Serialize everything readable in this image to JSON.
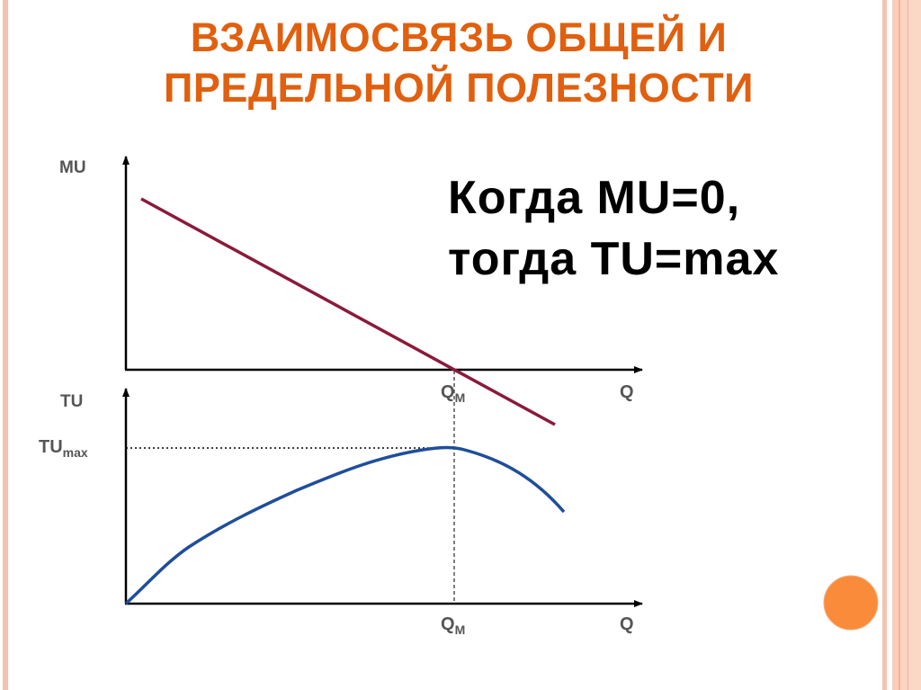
{
  "slide": {
    "title_line1": "ВЗАИМОСВЯЗЬ ОБЩЕЙ И",
    "title_line2": "ПРЕДЕЛЬНОЙ ПОЛЕЗНОСТИ",
    "statement_line1": "Когда MU=0,",
    "statement_line2": "тогда TU=max"
  },
  "diagram": {
    "top_graph": {
      "y_label": "MU",
      "x_label": "Q",
      "x_marker": "Q",
      "x_marker_sub": "M"
    },
    "bottom_graph": {
      "y_label": "TU",
      "y_marker": "TU",
      "y_marker_sub": "max",
      "x_label": "Q",
      "x_marker": "Q",
      "x_marker_sub": "M"
    }
  },
  "colors": {
    "title": "#E0600F",
    "mu_line": "#8B1A3A",
    "tu_curve": "#1F4E9A",
    "label": "#555555",
    "accent_circle": "#F98B3A",
    "border": "#F6C5B0"
  }
}
